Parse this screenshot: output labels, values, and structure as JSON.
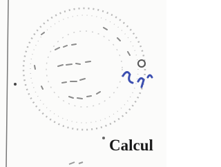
{
  "document": {
    "stamp_text": "Calcul"
  }
}
